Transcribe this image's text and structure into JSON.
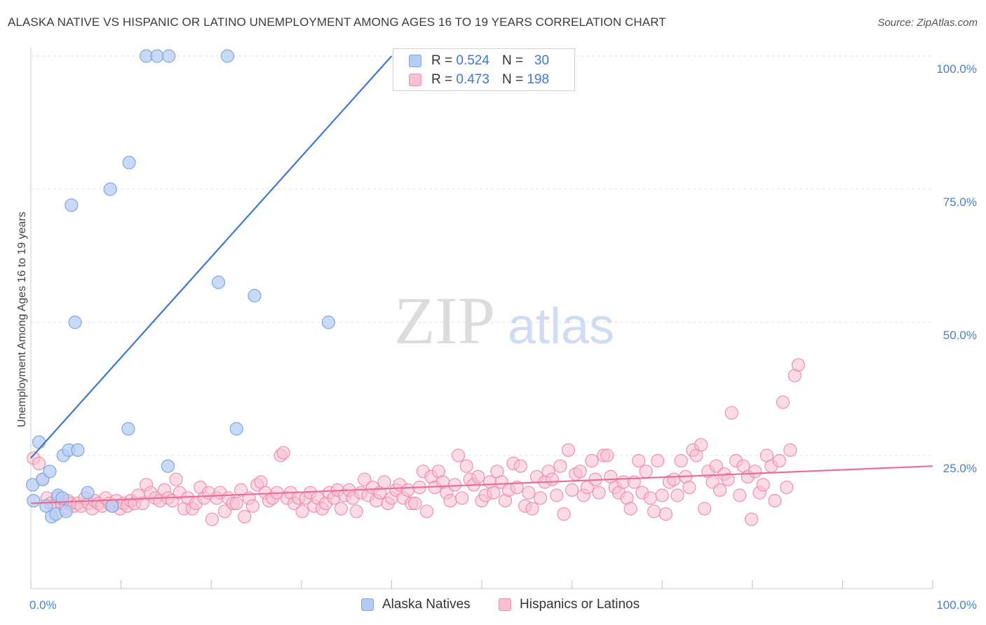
{
  "title": "ALASKA NATIVE VS HISPANIC OR LATINO UNEMPLOYMENT AMONG AGES 16 TO 19 YEARS CORRELATION CHART",
  "source": "Source: ZipAtlas.com",
  "watermark": {
    "zip": "ZIP",
    "atlas": "atlas"
  },
  "legend": {
    "r_label": "R =",
    "n_label": "N =",
    "rows": [
      {
        "series": "Alaska Natives",
        "r": "0.524",
        "n": "30"
      },
      {
        "series": "Hispanics or Latinos",
        "r": "0.473",
        "n": "198"
      }
    ]
  },
  "chart_data": {
    "type": "scatter",
    "title": "ALASKA NATIVE VS HISPANIC OR LATINO UNEMPLOYMENT AMONG AGES 16 TO 19 YEARS CORRELATION CHART",
    "xlabel": "",
    "ylabel": "Unemployment Among Ages 16 to 19 years",
    "xlim": [
      0,
      100
    ],
    "ylim": [
      0,
      104
    ],
    "x_tick_labels": [
      "0.0%",
      "100.0%"
    ],
    "y_ticks": [
      25,
      50,
      75,
      100
    ],
    "y_tick_labels": [
      "25.0%",
      "50.0%",
      "75.0%",
      "100.0%"
    ],
    "grid": true,
    "legend_position": "top-center",
    "colors": {
      "alaska_fill": "#b5cdf4",
      "alaska_stroke": "#7fa6e0",
      "alaska_line": "#3a78d4",
      "hispanic_fill": "#f8bfd1",
      "hispanic_stroke": "#ee8fb0",
      "hispanic_line": "#e86e97"
    },
    "series": [
      {
        "name": "Alaska Natives",
        "trend": {
          "x": [
            0,
            40
          ],
          "y": [
            24.5,
            100
          ]
        },
        "points": [
          [
            0.2,
            19.5
          ],
          [
            0.3,
            16.5
          ],
          [
            0.9,
            27.5
          ],
          [
            1.3,
            20.5
          ],
          [
            1.7,
            15.5
          ],
          [
            2.1,
            22
          ],
          [
            2.3,
            13.5
          ],
          [
            2.8,
            14
          ],
          [
            3.0,
            17.5
          ],
          [
            3.5,
            17
          ],
          [
            3.6,
            25
          ],
          [
            3.9,
            14.5
          ],
          [
            4.2,
            26
          ],
          [
            4.5,
            72
          ],
          [
            4.9,
            50
          ],
          [
            5.2,
            26
          ],
          [
            6.3,
            18
          ],
          [
            8.8,
            75
          ],
          [
            9.0,
            15.5
          ],
          [
            10.8,
            30
          ],
          [
            10.9,
            80
          ],
          [
            12.8,
            100
          ],
          [
            14.0,
            100
          ],
          [
            15.2,
            23
          ],
          [
            15.3,
            100
          ],
          [
            20.8,
            57.5
          ],
          [
            21.8,
            100
          ],
          [
            22.8,
            30
          ],
          [
            24.8,
            55
          ],
          [
            33.0,
            50
          ]
        ]
      },
      {
        "name": "Hispanics or Latinos",
        "trend": {
          "x": [
            0,
            100
          ],
          "y": [
            16,
            23
          ]
        },
        "points": [
          [
            0.3,
            24.5
          ],
          [
            0.9,
            23.5
          ],
          [
            1.3,
            20.5
          ],
          [
            1.8,
            17
          ],
          [
            2.2,
            16
          ],
          [
            2.6,
            15.5
          ],
          [
            3.0,
            17
          ],
          [
            3.4,
            16
          ],
          [
            3.8,
            15
          ],
          [
            4.1,
            16.5
          ],
          [
            4.4,
            16
          ],
          [
            4.8,
            15.5
          ],
          [
            5.2,
            16
          ],
          [
            5.6,
            15.5
          ],
          [
            6.0,
            17
          ],
          [
            6.4,
            16
          ],
          [
            6.8,
            15
          ],
          [
            7.1,
            16.5
          ],
          [
            7.5,
            16
          ],
          [
            7.9,
            15.5
          ],
          [
            8.3,
            17
          ],
          [
            8.7,
            16
          ],
          [
            9.1,
            15.5
          ],
          [
            9.5,
            16.5
          ],
          [
            9.9,
            15
          ],
          [
            10.3,
            16
          ],
          [
            10.7,
            15.5
          ],
          [
            11.1,
            16.5
          ],
          [
            11.5,
            16
          ],
          [
            11.9,
            17.5
          ],
          [
            12.4,
            16
          ],
          [
            12.8,
            19.5
          ],
          [
            13.3,
            18
          ],
          [
            13.8,
            17
          ],
          [
            14.3,
            16.5
          ],
          [
            14.8,
            18.5
          ],
          [
            15.2,
            17
          ],
          [
            15.7,
            16.5
          ],
          [
            16.1,
            20.5
          ],
          [
            16.5,
            18
          ],
          [
            17.0,
            15
          ],
          [
            17.4,
            17
          ],
          [
            17.9,
            15
          ],
          [
            18.3,
            16
          ],
          [
            18.8,
            19
          ],
          [
            19.2,
            17
          ],
          [
            19.7,
            18
          ],
          [
            20.1,
            13
          ],
          [
            20.6,
            17
          ],
          [
            21.0,
            18
          ],
          [
            21.5,
            14.5
          ],
          [
            21.9,
            17
          ],
          [
            22.4,
            16
          ],
          [
            22.8,
            16
          ],
          [
            23.3,
            18.5
          ],
          [
            23.7,
            13.5
          ],
          [
            24.2,
            17
          ],
          [
            24.6,
            15.5
          ],
          [
            25.1,
            19.5
          ],
          [
            25.5,
            20
          ],
          [
            26.0,
            18
          ],
          [
            26.4,
            16.5
          ],
          [
            26.8,
            17
          ],
          [
            27.3,
            18
          ],
          [
            27.7,
            25
          ],
          [
            28.0,
            25.5
          ],
          [
            28.4,
            17
          ],
          [
            28.8,
            18
          ],
          [
            29.2,
            16
          ],
          [
            29.7,
            17
          ],
          [
            30.1,
            14.5
          ],
          [
            30.5,
            17
          ],
          [
            31.0,
            18
          ],
          [
            31.4,
            15.5
          ],
          [
            31.8,
            17
          ],
          [
            32.3,
            15
          ],
          [
            32.7,
            16
          ],
          [
            33.1,
            18
          ],
          [
            33.6,
            17
          ],
          [
            34.0,
            18.5
          ],
          [
            34.4,
            15
          ],
          [
            34.8,
            17.5
          ],
          [
            35.3,
            18.5
          ],
          [
            35.7,
            17
          ],
          [
            36.1,
            14.5
          ],
          [
            36.6,
            18
          ],
          [
            37.0,
            20.5
          ],
          [
            37.4,
            17.5
          ],
          [
            37.9,
            19
          ],
          [
            38.3,
            16.5
          ],
          [
            38.7,
            18
          ],
          [
            39.2,
            20
          ],
          [
            39.6,
            16
          ],
          [
            40.0,
            17
          ],
          [
            40.5,
            18.5
          ],
          [
            40.9,
            19.5
          ],
          [
            41.3,
            17
          ],
          [
            41.8,
            18.5
          ],
          [
            42.2,
            16
          ],
          [
            42.6,
            16
          ],
          [
            43.1,
            19
          ],
          [
            43.5,
            22
          ],
          [
            43.9,
            14.5
          ],
          [
            44.4,
            21
          ],
          [
            44.8,
            19
          ],
          [
            45.2,
            22
          ],
          [
            45.7,
            20
          ],
          [
            46.1,
            18
          ],
          [
            46.5,
            16.5
          ],
          [
            47.0,
            19.5
          ],
          [
            47.4,
            25
          ],
          [
            47.8,
            17
          ],
          [
            48.3,
            23
          ],
          [
            48.7,
            20.5
          ],
          [
            49.1,
            19.5
          ],
          [
            49.6,
            21
          ],
          [
            50.0,
            16.5
          ],
          [
            50.4,
            17.5
          ],
          [
            50.9,
            20
          ],
          [
            51.3,
            18
          ],
          [
            51.7,
            22
          ],
          [
            52.2,
            20
          ],
          [
            52.6,
            16.5
          ],
          [
            53.0,
            18.5
          ],
          [
            53.5,
            23.5
          ],
          [
            53.9,
            19
          ],
          [
            54.3,
            23
          ],
          [
            54.8,
            15.5
          ],
          [
            55.2,
            18
          ],
          [
            55.6,
            15
          ],
          [
            56.1,
            21
          ],
          [
            56.5,
            17
          ],
          [
            57.0,
            20
          ],
          [
            57.4,
            22
          ],
          [
            57.8,
            20.5
          ],
          [
            58.3,
            17.5
          ],
          [
            58.7,
            23
          ],
          [
            59.1,
            14
          ],
          [
            59.6,
            26
          ],
          [
            60.0,
            18.5
          ],
          [
            60.4,
            21.5
          ],
          [
            60.9,
            22
          ],
          [
            61.3,
            17.5
          ],
          [
            61.7,
            19
          ],
          [
            62.2,
            24
          ],
          [
            62.6,
            20.5
          ],
          [
            63.0,
            18
          ],
          [
            63.5,
            25
          ],
          [
            63.9,
            25
          ],
          [
            64.3,
            21
          ],
          [
            64.8,
            19
          ],
          [
            65.2,
            18
          ],
          [
            65.7,
            20
          ],
          [
            66.1,
            17
          ],
          [
            66.5,
            15
          ],
          [
            66.9,
            20
          ],
          [
            67.4,
            24
          ],
          [
            67.8,
            18
          ],
          [
            68.2,
            22
          ],
          [
            68.7,
            17
          ],
          [
            69.1,
            14.5
          ],
          [
            69.5,
            24
          ],
          [
            70.0,
            17.5
          ],
          [
            70.4,
            14
          ],
          [
            70.8,
            20
          ],
          [
            71.3,
            20.5
          ],
          [
            71.7,
            17.5
          ],
          [
            72.1,
            24
          ],
          [
            72.6,
            21
          ],
          [
            73.0,
            19
          ],
          [
            73.4,
            26
          ],
          [
            73.8,
            25
          ],
          [
            74.3,
            27
          ],
          [
            74.7,
            15
          ],
          [
            75.1,
            22
          ],
          [
            75.6,
            20
          ],
          [
            76.0,
            23
          ],
          [
            76.4,
            18.5
          ],
          [
            76.9,
            21.5
          ],
          [
            77.3,
            20.5
          ],
          [
            77.7,
            33
          ],
          [
            78.2,
            24
          ],
          [
            78.6,
            17.5
          ],
          [
            79.0,
            23
          ],
          [
            79.5,
            21
          ],
          [
            79.9,
            13
          ],
          [
            80.3,
            22
          ],
          [
            80.8,
            18
          ],
          [
            81.2,
            19.5
          ],
          [
            81.6,
            25
          ],
          [
            82.1,
            23
          ],
          [
            82.5,
            16.5
          ],
          [
            83.0,
            24
          ],
          [
            83.4,
            35
          ],
          [
            83.8,
            19
          ],
          [
            84.2,
            26
          ],
          [
            84.7,
            40
          ],
          [
            85.1,
            42
          ]
        ]
      }
    ]
  }
}
